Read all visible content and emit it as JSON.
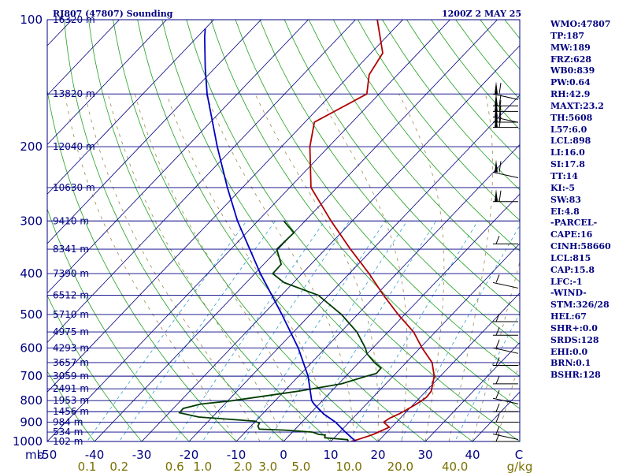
{
  "header": {
    "station": "RJ807 (47807) Sounding",
    "time": "1200Z  2 MAY 25"
  },
  "indices": [
    "WMO:47807",
    "TP:187",
    "MW:189",
    "FRZ:628",
    "WB0:839",
    "PW:0.64",
    "RH:42.9",
    "MAXT:23.2",
    "TH:5608",
    "L57:6.0",
    "LCL:898",
    "LI:16.0",
    "SI:17.8",
    "TT:14",
    "KI:-5",
    "SW:83",
    "EI:4.8",
    "-PARCEL-",
    "CAPE:16",
    "CINH:58660",
    "LCL:815",
    "CAP:15.8",
    "LFC:-1",
    "-WIND-",
    "STM:326/28",
    "HEL:67",
    "SHR+:0.0",
    "SRDS:128",
    "EHI:0.0",
    "BRN:0.1",
    "BSHR:128"
  ],
  "chart_data": {
    "type": "line",
    "title": "RJ807 (47807) Sounding",
    "subtitle": "1200Z  2 MAY 25",
    "y_axis": {
      "label": "mb",
      "scale": "log",
      "ylim": [
        1000,
        100
      ],
      "ticks": [
        100,
        200,
        300,
        400,
        500,
        600,
        700,
        800,
        900,
        1000
      ]
    },
    "x_axis": {
      "unit": "C",
      "xlim": [
        -50,
        50
      ],
      "ticks": [
        -50,
        -40,
        -30,
        -20,
        -10,
        0,
        10,
        20,
        30,
        40
      ]
    },
    "mixing_ratio_axis": {
      "unit": "g/kg",
      "labels": [
        "0.1",
        "0.2",
        "0.6",
        "1.0",
        "2.0",
        "3.0",
        "5.0",
        "10.0",
        "20.0",
        "40.0"
      ]
    },
    "height_labels": [
      {
        "p": 100,
        "label": "16320 m"
      },
      {
        "p": 150,
        "label": "13820 m"
      },
      {
        "p": 200,
        "label": "12040 m"
      },
      {
        "p": 250,
        "label": "10630 m"
      },
      {
        "p": 300,
        "label": "9410 m"
      },
      {
        "p": 350,
        "label": "8341 m"
      },
      {
        "p": 400,
        "label": "7390 m"
      },
      {
        "p": 450,
        "label": "6512 m"
      },
      {
        "p": 500,
        "label": "5710 m"
      },
      {
        "p": 550,
        "label": "4975 m"
      },
      {
        "p": 600,
        "label": "4293 m"
      },
      {
        "p": 650,
        "label": "3657 m"
      },
      {
        "p": 700,
        "label": "3059 m"
      },
      {
        "p": 750,
        "label": "2491 m"
      },
      {
        "p": 800,
        "label": "1953 m"
      },
      {
        "p": 850,
        "label": "1456 m"
      },
      {
        "p": 900,
        "label": "984 m"
      },
      {
        "p": 950,
        "label": "534 m"
      },
      {
        "p": 1000,
        "label": "102 m"
      }
    ],
    "series": [
      {
        "key": "temperature",
        "color": "#b00000",
        "points": [
          [
            1000,
            14.3
          ],
          [
            990,
            15.3
          ],
          [
            965,
            17.4
          ],
          [
            950,
            18.2
          ],
          [
            925,
            19.5
          ],
          [
            900,
            17.3
          ],
          [
            880,
            17.8
          ],
          [
            860,
            18.9
          ],
          [
            845,
            19.5
          ],
          [
            820,
            20.4
          ],
          [
            800,
            21.0
          ],
          [
            785,
            21.3
          ],
          [
            760,
            21.1
          ],
          [
            700,
            18.7
          ],
          [
            650,
            15.5
          ],
          [
            600,
            10.4
          ],
          [
            550,
            5.4
          ],
          [
            500,
            -1.4
          ],
          [
            450,
            -8.4
          ],
          [
            400,
            -15.8
          ],
          [
            350,
            -24.7
          ],
          [
            300,
            -34.5
          ],
          [
            250,
            -45.5
          ],
          [
            200,
            -54.0
          ],
          [
            175,
            -58.0
          ],
          [
            150,
            -52.6
          ],
          [
            135,
            -56.0
          ],
          [
            120,
            -57.5
          ],
          [
            100,
            -65.4
          ]
        ]
      },
      {
        "key": "dewpoint",
        "color": "#003c00",
        "points": [
          [
            1000,
            13.7
          ],
          [
            990,
            13.2
          ],
          [
            980,
            8.0
          ],
          [
            975,
            7.8
          ],
          [
            965,
            7.5
          ],
          [
            962,
            6.0
          ],
          [
            955,
            5.0
          ],
          [
            950,
            4.2
          ],
          [
            940,
            -2.0
          ],
          [
            935,
            -7.6
          ],
          [
            920,
            -8.5
          ],
          [
            905,
            -8.8
          ],
          [
            895,
            -10.1
          ],
          [
            875,
            -22.9
          ],
          [
            855,
            -27.8
          ],
          [
            835,
            -27.9
          ],
          [
            815,
            -25.0
          ],
          [
            800,
            -19.0
          ],
          [
            760,
            -7.0
          ],
          [
            730,
            0.6
          ],
          [
            700,
            4.4
          ],
          [
            690,
            5.9
          ],
          [
            670,
            5.8
          ],
          [
            650,
            3.3
          ],
          [
            620,
            0.0
          ],
          [
            600,
            -1.6
          ],
          [
            550,
            -6.6
          ],
          [
            500,
            -13.4
          ],
          [
            450,
            -22.2
          ],
          [
            420,
            -32.0
          ],
          [
            400,
            -36.2
          ],
          [
            380,
            -36.3
          ],
          [
            350,
            -40.3
          ],
          [
            320,
            -40.0
          ],
          [
            300,
            -44.5
          ]
        ]
      },
      {
        "key": "parcel",
        "color": "#0000c0",
        "points": [
          [
            1000,
            15.3
          ],
          [
            950,
            11.2
          ],
          [
            900,
            7.1
          ],
          [
            860,
            2.9
          ],
          [
            815,
            -1.1
          ],
          [
            800,
            -2.3
          ],
          [
            700,
            -8.0
          ],
          [
            600,
            -15.8
          ],
          [
            500,
            -26.0
          ],
          [
            400,
            -38.8
          ],
          [
            300,
            -54.3
          ],
          [
            250,
            -63.2
          ],
          [
            200,
            -73.6
          ],
          [
            150,
            -86.4
          ],
          [
            130,
            -92.1
          ],
          [
            110,
            -98.4
          ],
          [
            105,
            -100.0
          ]
        ]
      }
    ]
  }
}
